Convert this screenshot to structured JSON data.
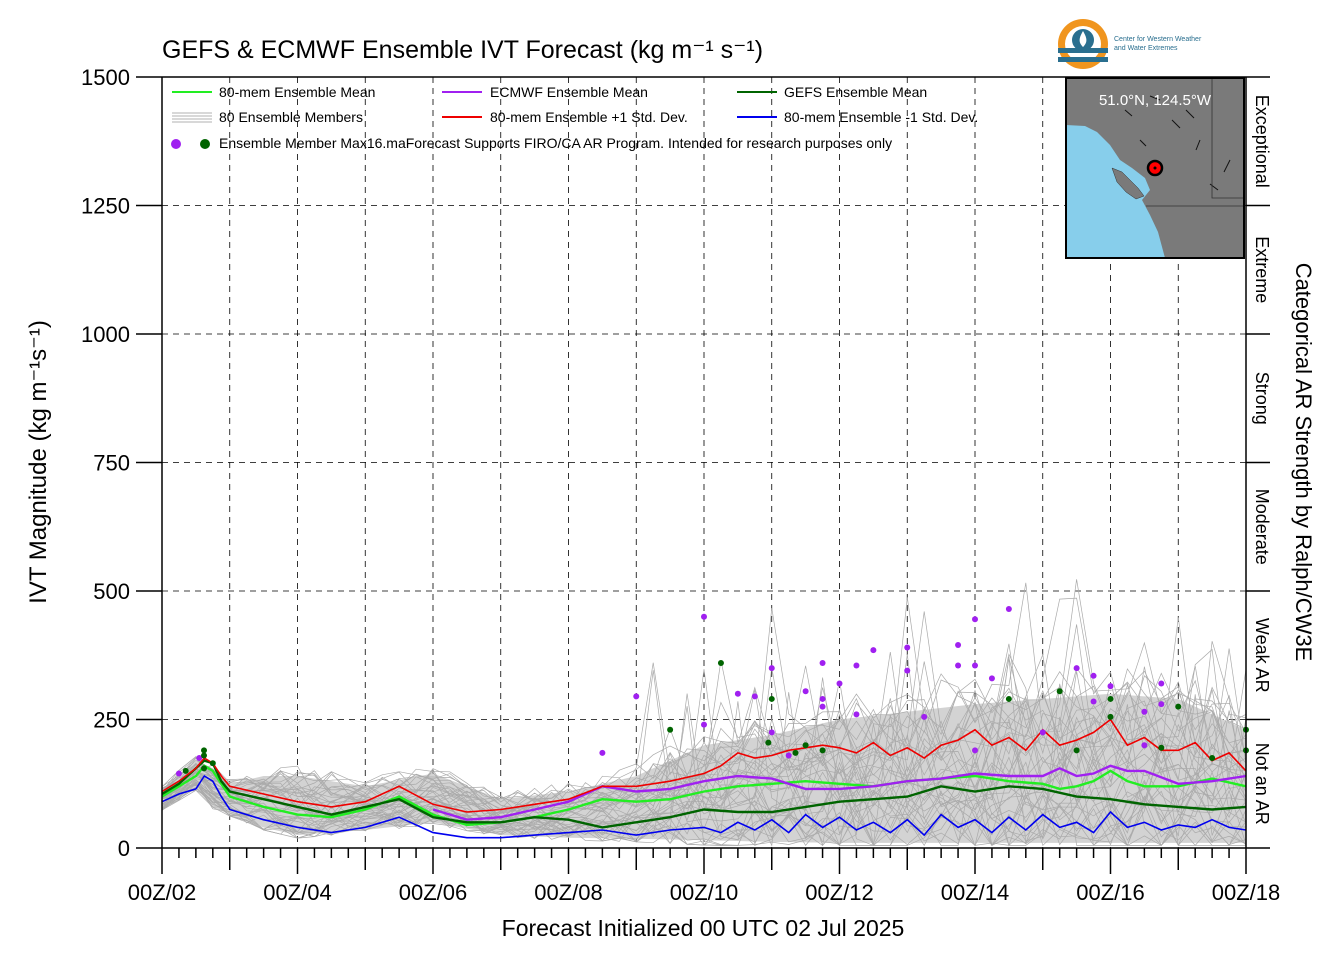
{
  "chart_data": {
    "type": "line",
    "title": "GEFS & ECMWF Ensemble IVT Forecast (kg m⁻¹ s⁻¹)",
    "xlabel": "Forecast Initialized 00 UTC 02 Jul 2025",
    "ylabel": "IVT Magnitude (kg m⁻¹s⁻¹)",
    "right_label": "Categorical AR Strength by Ralph/CW3E",
    "ylim": [
      0,
      1500
    ],
    "xlim_days": [
      0,
      16
    ],
    "x_unit": "days since 00Z 02 Jul 2025",
    "yticks": [
      0,
      250,
      500,
      750,
      1000,
      1250,
      1500
    ],
    "ytick_labels": [
      "0",
      "250",
      "500",
      "750",
      "1000",
      "1250",
      "1500"
    ],
    "xtick_labels": [
      "00Z/02",
      "00Z/04",
      "00Z/06",
      "00Z/08",
      "00Z/10",
      "00Z/12",
      "00Z/14",
      "00Z/16",
      "00Z/18"
    ],
    "grid": true,
    "legend_position": "top-left",
    "legend": [
      {
        "label": "80-mem Ensemble Mean",
        "color": "#22ee22",
        "kind": "line"
      },
      {
        "label": "ECMWF Ensemble Mean",
        "color": "#a020f0",
        "kind": "line"
      },
      {
        "label": "GEFS Ensemble Mean",
        "color": "#006400",
        "kind": "line"
      },
      {
        "label": "80 Ensemble Members",
        "color": "#b0b0b0",
        "kind": "multiline"
      },
      {
        "label": "80-mem Ensemble +1 Std. Dev.",
        "color": "#ee0000",
        "kind": "line"
      },
      {
        "label": "80-mem Ensemble -1 Std. Dev.",
        "color": "#0000ee",
        "kind": "line"
      },
      {
        "label": "Ensemble Member Max",
        "color": "#a020f0",
        "color2": "#006400",
        "kind": "dots"
      }
    ],
    "note": "16.maForecast Supports FIRO/CA AR Program. Intended for research purposes only",
    "categories_right": [
      {
        "label": "Not an AR",
        "from": 0,
        "to": 250
      },
      {
        "label": "Weak AR",
        "from": 250,
        "to": 500
      },
      {
        "label": "Moderate",
        "from": 500,
        "to": 750
      },
      {
        "label": "Strong",
        "from": 750,
        "to": 1000
      },
      {
        "label": "Extreme",
        "from": 1000,
        "to": 1250
      },
      {
        "label": "Exceptional",
        "from": 1250,
        "to": 1500
      }
    ],
    "band": {
      "x": [
        0,
        0.5,
        0.75,
        1,
        1.5,
        2,
        3,
        4,
        5,
        6,
        7,
        8,
        9,
        10,
        11,
        12,
        13,
        14,
        15,
        16
      ],
      "upper": [
        115,
        170,
        155,
        125,
        140,
        140,
        120,
        145,
        95,
        110,
        140,
        200,
        220,
        250,
        265,
        280,
        290,
        300,
        290,
        230
      ],
      "lower": [
        75,
        115,
        80,
        65,
        40,
        25,
        35,
        50,
        25,
        20,
        18,
        15,
        12,
        10,
        10,
        10,
        10,
        10,
        10,
        10
      ]
    },
    "series": [
      {
        "name": "80-mem Ensemble Mean",
        "color": "#22ee22",
        "x": [
          0,
          0.25,
          0.5,
          0.625,
          0.75,
          0.875,
          1,
          1.5,
          2,
          2.5,
          3,
          3.5,
          4,
          4.5,
          5,
          5.5,
          6,
          6.5,
          7,
          7.5,
          8,
          8.5,
          9,
          9.5,
          10,
          10.5,
          11,
          11.5,
          12,
          12.5,
          13,
          13.25,
          13.5,
          13.75,
          14,
          14.25,
          14.5,
          15,
          15.5,
          16
        ],
        "y": [
          100,
          120,
          140,
          160,
          150,
          125,
          100,
          80,
          65,
          60,
          75,
          100,
          65,
          45,
          50,
          60,
          75,
          95,
          90,
          95,
          110,
          120,
          125,
          130,
          125,
          120,
          130,
          135,
          140,
          130,
          125,
          115,
          120,
          130,
          150,
          130,
          120,
          120,
          135,
          120
        ]
      },
      {
        "name": "ECMWF Ensemble Mean",
        "color": "#a020f0",
        "x": [
          4,
          4.5,
          5,
          5.5,
          6,
          6.5,
          7,
          7.5,
          8,
          8.5,
          9,
          9.5,
          10,
          10.5,
          11,
          11.5,
          12,
          12.5,
          13,
          13.25,
          13.5,
          13.75,
          14,
          14.25,
          14.5,
          15,
          15.5,
          16
        ],
        "y": [
          75,
          55,
          60,
          75,
          90,
          120,
          110,
          115,
          130,
          140,
          135,
          115,
          115,
          120,
          130,
          135,
          145,
          140,
          140,
          155,
          140,
          145,
          160,
          150,
          150,
          125,
          130,
          140
        ]
      },
      {
        "name": "GEFS Ensemble Mean",
        "color": "#006400",
        "x": [
          0,
          0.25,
          0.5,
          0.625,
          0.75,
          0.875,
          1,
          1.5,
          2,
          2.5,
          3,
          3.5,
          4,
          4.5,
          5,
          5.5,
          6,
          6.5,
          7,
          7.5,
          8,
          8.5,
          9,
          9.5,
          10,
          10.5,
          11,
          11.5,
          12,
          12.5,
          13,
          13.5,
          14,
          14.5,
          15,
          15.5,
          16
        ],
        "y": [
          105,
          125,
          155,
          170,
          165,
          130,
          110,
          95,
          80,
          65,
          80,
          95,
          60,
          50,
          50,
          60,
          55,
          40,
          50,
          60,
          75,
          70,
          70,
          80,
          90,
          95,
          100,
          120,
          110,
          120,
          115,
          100,
          95,
          85,
          80,
          75,
          80
        ]
      },
      {
        "name": "80-mem Ensemble +1 Std. Dev.",
        "color": "#ee0000",
        "x": [
          0,
          0.25,
          0.5,
          0.625,
          0.75,
          0.875,
          1,
          1.5,
          2,
          2.5,
          3,
          3.5,
          4,
          4.5,
          5,
          5.5,
          6,
          6.5,
          7,
          7.5,
          8,
          8.25,
          8.5,
          8.75,
          9,
          9.25,
          9.5,
          9.75,
          10,
          10.25,
          10.5,
          10.75,
          11,
          11.25,
          11.5,
          11.75,
          12,
          12.25,
          12.5,
          12.75,
          13,
          13.25,
          13.5,
          13.75,
          14,
          14.25,
          14.5,
          14.75,
          15,
          15.25,
          15.5,
          15.75,
          16
        ],
        "y": [
          110,
          130,
          155,
          175,
          165,
          140,
          120,
          105,
          90,
          80,
          90,
          120,
          85,
          70,
          75,
          85,
          95,
          120,
          120,
          130,
          145,
          160,
          185,
          175,
          180,
          190,
          195,
          200,
          195,
          185,
          205,
          180,
          195,
          175,
          200,
          210,
          230,
          200,
          215,
          190,
          230,
          200,
          210,
          225,
          250,
          200,
          215,
          190,
          190,
          205,
          170,
          185,
          150
        ]
      },
      {
        "name": "80-mem Ensemble -1 Std. Dev.",
        "color": "#0000ee",
        "x": [
          0,
          0.25,
          0.5,
          0.625,
          0.75,
          0.875,
          1,
          1.5,
          2,
          2.5,
          3,
          3.5,
          4,
          4.5,
          5,
          5.5,
          6,
          6.5,
          7,
          7.5,
          8,
          8.25,
          8.5,
          8.75,
          9,
          9.25,
          9.5,
          9.75,
          10,
          10.25,
          10.5,
          10.75,
          11,
          11.25,
          11.5,
          11.75,
          12,
          12.25,
          12.5,
          12.75,
          13,
          13.25,
          13.5,
          13.75,
          14,
          14.25,
          14.5,
          14.75,
          15,
          15.25,
          15.5,
          15.75,
          16
        ],
        "y": [
          90,
          105,
          115,
          140,
          130,
          100,
          75,
          55,
          40,
          30,
          40,
          60,
          30,
          20,
          20,
          25,
          30,
          35,
          25,
          35,
          40,
          30,
          50,
          35,
          55,
          30,
          65,
          40,
          60,
          35,
          50,
          30,
          55,
          25,
          65,
          40,
          55,
          30,
          60,
          35,
          65,
          40,
          50,
          30,
          70,
          40,
          50,
          35,
          45,
          40,
          55,
          40,
          35
        ]
      }
    ],
    "member_max_points": [
      {
        "x": 0.25,
        "y": 145,
        "group": "ECMWF"
      },
      {
        "x": 0.35,
        "y": 150,
        "group": "GEFS"
      },
      {
        "x": 0.55,
        "y": 175,
        "group": "ECMWF"
      },
      {
        "x": 0.62,
        "y": 190,
        "group": "GEFS"
      },
      {
        "x": 0.62,
        "y": 180,
        "group": "GEFS"
      },
      {
        "x": 0.75,
        "y": 165,
        "group": "GEFS"
      },
      {
        "x": 0.62,
        "y": 155,
        "group": "GEFS"
      },
      {
        "x": 6.5,
        "y": 185,
        "group": "ECMWF"
      },
      {
        "x": 7.0,
        "y": 295,
        "group": "ECMWF"
      },
      {
        "x": 7.5,
        "y": 230,
        "group": "GEFS"
      },
      {
        "x": 8.0,
        "y": 450,
        "group": "ECMWF"
      },
      {
        "x": 8.0,
        "y": 240,
        "group": "ECMWF"
      },
      {
        "x": 8.25,
        "y": 360,
        "group": "GEFS"
      },
      {
        "x": 8.5,
        "y": 300,
        "group": "ECMWF"
      },
      {
        "x": 8.75,
        "y": 295,
        "group": "ECMWF"
      },
      {
        "x": 8.95,
        "y": 205,
        "group": "GEFS"
      },
      {
        "x": 9.0,
        "y": 350,
        "group": "ECMWF"
      },
      {
        "x": 9.0,
        "y": 290,
        "group": "GEFS"
      },
      {
        "x": 9.0,
        "y": 225,
        "group": "ECMWF"
      },
      {
        "x": 9.25,
        "y": 180,
        "group": "ECMWF"
      },
      {
        "x": 9.35,
        "y": 185,
        "group": "GEFS"
      },
      {
        "x": 9.5,
        "y": 305,
        "group": "ECMWF"
      },
      {
        "x": 9.5,
        "y": 200,
        "group": "GEFS"
      },
      {
        "x": 9.75,
        "y": 360,
        "group": "ECMWF"
      },
      {
        "x": 9.75,
        "y": 290,
        "group": "ECMWF"
      },
      {
        "x": 9.75,
        "y": 275,
        "group": "ECMWF"
      },
      {
        "x": 9.75,
        "y": 190,
        "group": "GEFS"
      },
      {
        "x": 10.0,
        "y": 320,
        "group": "ECMWF"
      },
      {
        "x": 10.25,
        "y": 355,
        "group": "ECMWF"
      },
      {
        "x": 10.25,
        "y": 260,
        "group": "ECMWF"
      },
      {
        "x": 10.5,
        "y": 385,
        "group": "ECMWF"
      },
      {
        "x": 11.0,
        "y": 390,
        "group": "ECMWF"
      },
      {
        "x": 11.0,
        "y": 345,
        "group": "ECMWF"
      },
      {
        "x": 11.25,
        "y": 255,
        "group": "ECMWF"
      },
      {
        "x": 11.75,
        "y": 395,
        "group": "ECMWF"
      },
      {
        "x": 11.75,
        "y": 355,
        "group": "ECMWF"
      },
      {
        "x": 12.0,
        "y": 445,
        "group": "ECMWF"
      },
      {
        "x": 12.0,
        "y": 355,
        "group": "ECMWF"
      },
      {
        "x": 12.0,
        "y": 190,
        "group": "ECMWF"
      },
      {
        "x": 12.25,
        "y": 330,
        "group": "ECMWF"
      },
      {
        "x": 12.5,
        "y": 465,
        "group": "ECMWF"
      },
      {
        "x": 12.5,
        "y": 290,
        "group": "GEFS"
      },
      {
        "x": 13.0,
        "y": 225,
        "group": "ECMWF"
      },
      {
        "x": 13.25,
        "y": 305,
        "group": "GEFS"
      },
      {
        "x": 13.5,
        "y": 350,
        "group": "ECMWF"
      },
      {
        "x": 13.5,
        "y": 190,
        "group": "GEFS"
      },
      {
        "x": 13.75,
        "y": 335,
        "group": "ECMWF"
      },
      {
        "x": 13.75,
        "y": 285,
        "group": "ECMWF"
      },
      {
        "x": 14.0,
        "y": 315,
        "group": "ECMWF"
      },
      {
        "x": 14.0,
        "y": 290,
        "group": "GEFS"
      },
      {
        "x": 14.0,
        "y": 255,
        "group": "GEFS"
      },
      {
        "x": 14.5,
        "y": 265,
        "group": "ECMWF"
      },
      {
        "x": 14.75,
        "y": 320,
        "group": "ECMWF"
      },
      {
        "x": 14.75,
        "y": 280,
        "group": "ECMWF"
      },
      {
        "x": 14.5,
        "y": 200,
        "group": "ECMWF"
      },
      {
        "x": 14.75,
        "y": 195,
        "group": "GEFS"
      },
      {
        "x": 15.0,
        "y": 275,
        "group": "GEFS"
      },
      {
        "x": 15.5,
        "y": 175,
        "group": "GEFS"
      },
      {
        "x": 16.0,
        "y": 230,
        "group": "GEFS"
      },
      {
        "x": 16.0,
        "y": 190,
        "group": "GEFS"
      }
    ],
    "inset_map": {
      "label": "51.0°N, 124.5°W",
      "land_color": "#7a7a7a",
      "water_color": "#87ceeb",
      "marker_color": "#ff0000"
    },
    "logo": {
      "line1": "Center for Western Weather",
      "line2": "and Water Extremes"
    }
  }
}
